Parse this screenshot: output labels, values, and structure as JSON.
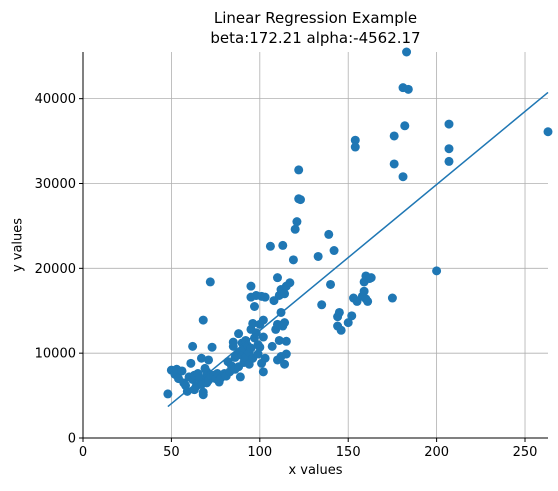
{
  "chart_data": {
    "type": "scatter",
    "title": "Linear Regression Example",
    "subtitle": "beta:172.21 alpha:-4562.17",
    "xlabel": "x values",
    "ylabel": "y values",
    "xlim": [
      0,
      263
    ],
    "ylim": [
      0,
      45500
    ],
    "xticks": [
      0,
      50,
      100,
      150,
      200,
      250
    ],
    "yticks": [
      0,
      10000,
      20000,
      30000,
      40000
    ],
    "grid": true,
    "point_color": "#1f77b4",
    "line_color": "#1f77b4",
    "regression": {
      "beta": 172.21,
      "alpha": -4562.17,
      "x_range": [
        48,
        263
      ]
    },
    "points": [
      [
        48,
        5200
      ],
      [
        50,
        8000
      ],
      [
        52,
        7500
      ],
      [
        53,
        8100
      ],
      [
        54,
        7000
      ],
      [
        56,
        7900
      ],
      [
        57,
        6500
      ],
      [
        58,
        6200
      ],
      [
        59,
        5500
      ],
      [
        60,
        7200
      ],
      [
        61,
        8800
      ],
      [
        62,
        10800
      ],
      [
        62,
        6900
      ],
      [
        63,
        7400
      ],
      [
        63,
        5700
      ],
      [
        64,
        6100
      ],
      [
        65,
        7600
      ],
      [
        66,
        7000
      ],
      [
        67,
        6300
      ],
      [
        67,
        9400
      ],
      [
        68,
        13900
      ],
      [
        68,
        5400
      ],
      [
        68,
        5100
      ],
      [
        69,
        7100
      ],
      [
        69,
        8200
      ],
      [
        70,
        6500
      ],
      [
        70,
        7800
      ],
      [
        71,
        9200
      ],
      [
        71,
        6800
      ],
      [
        72,
        18400
      ],
      [
        72,
        7400
      ],
      [
        73,
        10700
      ],
      [
        74,
        7400
      ],
      [
        75,
        7000
      ],
      [
        76,
        7600
      ],
      [
        77,
        6600
      ],
      [
        78,
        7100
      ],
      [
        80,
        7600
      ],
      [
        81,
        7300
      ],
      [
        82,
        9000
      ],
      [
        83,
        7800
      ],
      [
        84,
        8500
      ],
      [
        85,
        10800
      ],
      [
        85,
        11300
      ],
      [
        86,
        9500
      ],
      [
        86,
        8100
      ],
      [
        87,
        9800
      ],
      [
        88,
        8400
      ],
      [
        88,
        12300
      ],
      [
        89,
        10200
      ],
      [
        89,
        7200
      ],
      [
        90,
        9700
      ],
      [
        90,
        11200
      ],
      [
        91,
        8900
      ],
      [
        91,
        10600
      ],
      [
        92,
        9500
      ],
      [
        92,
        11500
      ],
      [
        93,
        10900
      ],
      [
        94,
        8700
      ],
      [
        94,
        10100
      ],
      [
        95,
        12800
      ],
      [
        95,
        16600
      ],
      [
        95,
        17900
      ],
      [
        95,
        10600
      ],
      [
        96,
        9400
      ],
      [
        96,
        13500
      ],
      [
        97,
        15500
      ],
      [
        97,
        11800
      ],
      [
        98,
        16800
      ],
      [
        98,
        12400
      ],
      [
        99,
        9900
      ],
      [
        99,
        11000
      ],
      [
        100,
        10700
      ],
      [
        100,
        13400
      ],
      [
        101,
        8800
      ],
      [
        101,
        16700
      ],
      [
        102,
        7800
      ],
      [
        102,
        13900
      ],
      [
        102,
        11900
      ],
      [
        103,
        9400
      ],
      [
        103,
        16600
      ],
      [
        106,
        22600
      ],
      [
        107,
        10800
      ],
      [
        108,
        16200
      ],
      [
        109,
        12800
      ],
      [
        110,
        18900
      ],
      [
        110,
        13400
      ],
      [
        110,
        9200
      ],
      [
        111,
        11500
      ],
      [
        111,
        16800
      ],
      [
        112,
        14800
      ],
      [
        112,
        17500
      ],
      [
        112,
        9600
      ],
      [
        113,
        13200
      ],
      [
        113,
        22700
      ],
      [
        114,
        13600
      ],
      [
        114,
        8700
      ],
      [
        114,
        17000
      ],
      [
        115,
        9900
      ],
      [
        115,
        11400
      ],
      [
        115,
        17900
      ],
      [
        117,
        18300
      ],
      [
        119,
        21000
      ],
      [
        120,
        24600
      ],
      [
        121,
        25500
      ],
      [
        122,
        31600
      ],
      [
        122,
        28200
      ],
      [
        123,
        28100
      ],
      [
        133,
        21400
      ],
      [
        135,
        15700
      ],
      [
        139,
        24000
      ],
      [
        140,
        18100
      ],
      [
        142,
        22100
      ],
      [
        144,
        14300
      ],
      [
        144,
        13200
      ],
      [
        145,
        14800
      ],
      [
        146,
        12700
      ],
      [
        150,
        13600
      ],
      [
        152,
        14400
      ],
      [
        153,
        16500
      ],
      [
        154,
        35100
      ],
      [
        154,
        34300
      ],
      [
        155,
        16100
      ],
      [
        158,
        16700
      ],
      [
        159,
        18400
      ],
      [
        159,
        17300
      ],
      [
        160,
        19100
      ],
      [
        160,
        16400
      ],
      [
        161,
        16100
      ],
      [
        162,
        18800
      ],
      [
        163,
        18900
      ],
      [
        175,
        16500
      ],
      [
        176,
        32300
      ],
      [
        176,
        35600
      ],
      [
        181,
        30800
      ],
      [
        181,
        41300
      ],
      [
        182,
        36800
      ],
      [
        183,
        45500
      ],
      [
        184,
        41100
      ],
      [
        200,
        19700
      ],
      [
        207,
        34100
      ],
      [
        207,
        37000
      ],
      [
        207,
        32600
      ],
      [
        263,
        36100
      ]
    ]
  }
}
